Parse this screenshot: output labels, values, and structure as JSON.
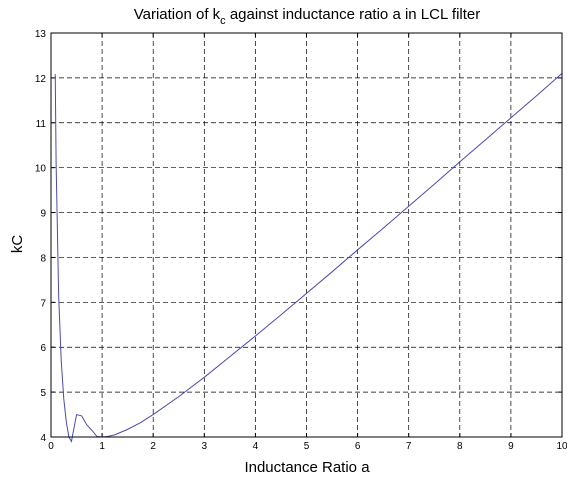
{
  "chart_data": {
    "type": "line",
    "title_parts": [
      "Variation of k",
      "c",
      " against inductance ratio a in LCL filter"
    ],
    "xlabel": "Inductance Ratio a",
    "ylabel": "kC",
    "xlim": [
      0,
      10
    ],
    "ylim": [
      4,
      13
    ],
    "xticks": [
      "0",
      "1",
      "2",
      "3",
      "4",
      "5",
      "6",
      "7",
      "8",
      "9",
      "10"
    ],
    "yticks": [
      "4",
      "5",
      "6",
      "7",
      "8",
      "9",
      "10",
      "11",
      "12",
      "13"
    ],
    "grid": true,
    "series": [
      {
        "color": "#4a4ab0",
        "x": [
          0.083,
          0.1,
          0.15,
          0.2,
          0.25,
          0.3,
          0.35,
          0.4,
          0.5,
          0.6,
          0.7,
          0.8,
          0.9,
          1.0,
          1.1,
          1.25,
          1.5,
          1.75,
          2.0,
          2.5,
          3.0,
          3.5,
          4.0,
          4.5,
          5.0,
          5.5,
          6.0,
          6.5,
          7.0,
          7.5,
          8.0,
          8.5,
          9.0,
          9.5,
          10.0
        ],
        "y": [
          12.083,
          10.1,
          7.15,
          5.7,
          4.85,
          4.33,
          4.0,
          3.9,
          4.5,
          4.47,
          4.27,
          4.15,
          4.01,
          4.0,
          4.01,
          4.05,
          4.17,
          4.32,
          4.5,
          4.9,
          5.33,
          5.79,
          6.25,
          6.72,
          7.2,
          7.68,
          8.17,
          8.65,
          9.14,
          9.63,
          10.13,
          10.62,
          11.11,
          11.6,
          12.1
        ]
      }
    ]
  }
}
